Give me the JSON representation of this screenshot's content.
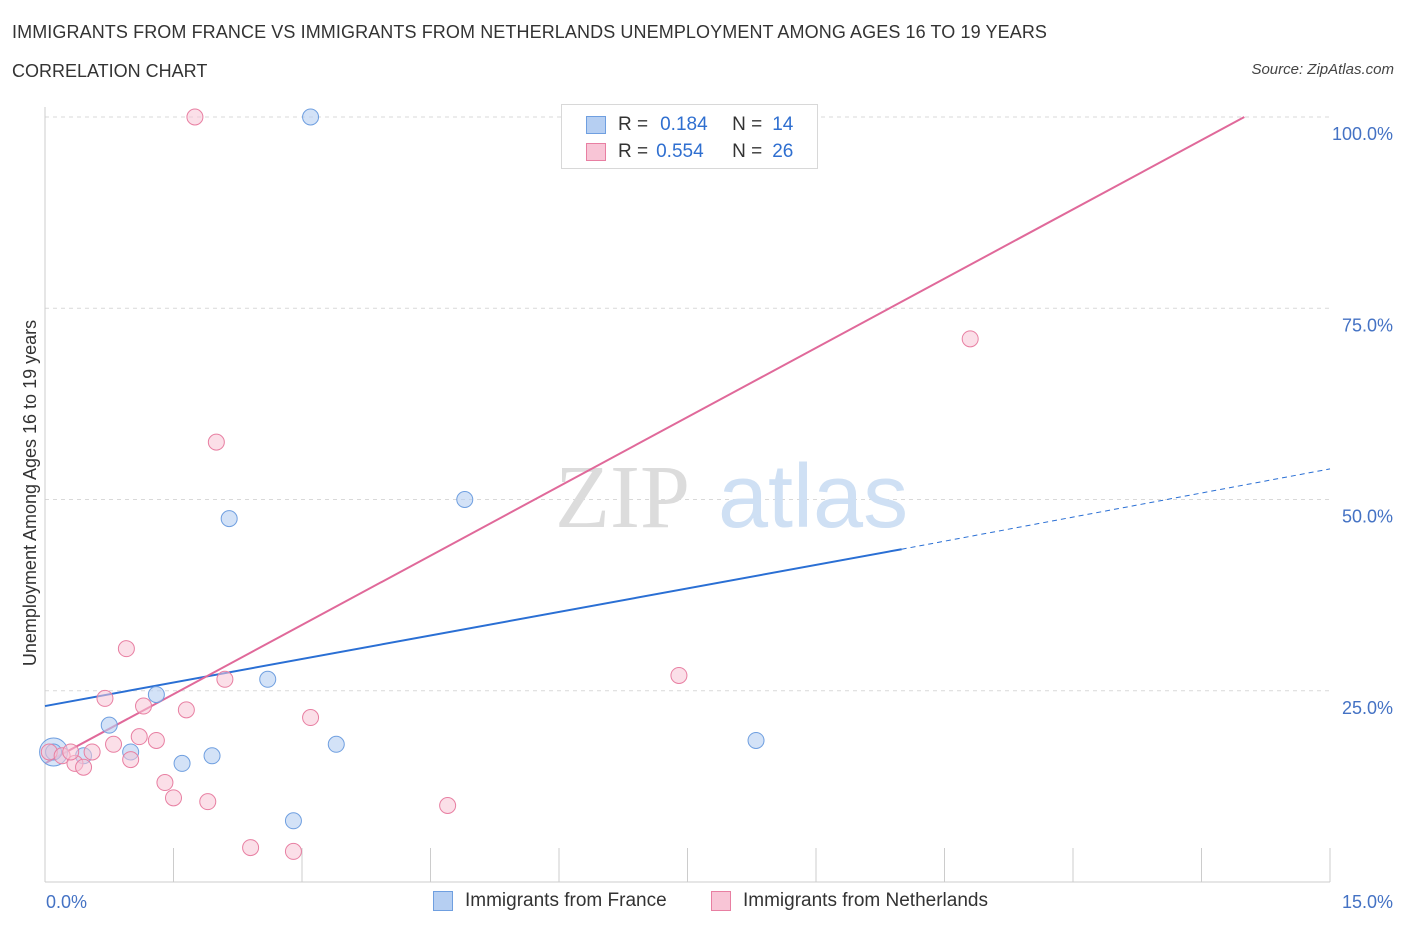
{
  "title": "IMMIGRANTS FROM FRANCE VS IMMIGRANTS FROM NETHERLANDS UNEMPLOYMENT AMONG AGES 16 TO 19 YEARS",
  "subtitle": "CORRELATION CHART",
  "source": "Source: ZipAtlas.com",
  "watermark": {
    "zip": "ZIP",
    "atlas": "atlas"
  },
  "legend": {
    "france": {
      "r_label": "R =",
      "r_value": "0.184",
      "n_label": "N =",
      "n_value": "14"
    },
    "netherlands": {
      "r_label": "R =",
      "r_value": "0.554",
      "n_label": "N =",
      "n_value": "26"
    }
  },
  "colors": {
    "france": "#6f9fe0",
    "france_fill": "#b6cff2",
    "netherlands": "#e87fa2",
    "netherlands_fill": "#f8c5d6",
    "france_line": "#2a6fd4",
    "netherlands_line": "#e0699a"
  },
  "chart_data": {
    "type": "scatter",
    "title": "IMMIGRANTS FROM FRANCE VS IMMIGRANTS FROM NETHERLANDS UNEMPLOYMENT AMONG AGES 16 TO 19 YEARS",
    "xlabel": "",
    "ylabel": "Unemployment Among Ages 16 to 19 years",
    "xlim": [
      0,
      15
    ],
    "ylim": [
      0,
      100
    ],
    "x_tick_labels": [
      "0.0%",
      "15.0%"
    ],
    "y_tick_labels": [
      "100.0%",
      "75.0%",
      "50.0%",
      "25.0%"
    ],
    "y_tick_values": [
      100,
      75,
      50,
      25
    ],
    "series": [
      {
        "name": "Immigrants from France",
        "points": [
          [
            0.1,
            17.0
          ],
          [
            0.75,
            20.5
          ],
          [
            1.0,
            17.0
          ],
          [
            1.3,
            24.5
          ],
          [
            1.6,
            15.5
          ],
          [
            1.95,
            16.5
          ],
          [
            2.15,
            47.5
          ],
          [
            2.6,
            26.5
          ],
          [
            2.9,
            8.0
          ],
          [
            3.1,
            100.0
          ],
          [
            3.4,
            18.0
          ],
          [
            4.9,
            50.0
          ],
          [
            8.3,
            18.5
          ],
          [
            0.45,
            16.5
          ]
        ],
        "trend": {
          "x0": 0,
          "y0": 23.0,
          "x1": 10.0,
          "y1": 43.5,
          "x_dash_end": 15.0,
          "y_dash_end": 54.0
        }
      },
      {
        "name": "Immigrants from Netherlands",
        "points": [
          [
            0.05,
            17.0
          ],
          [
            0.2,
            16.5
          ],
          [
            0.35,
            15.5
          ],
          [
            0.45,
            15.0
          ],
          [
            0.55,
            17.0
          ],
          [
            0.7,
            24.0
          ],
          [
            0.8,
            18.0
          ],
          [
            0.95,
            30.5
          ],
          [
            1.1,
            19.0
          ],
          [
            1.15,
            23.0
          ],
          [
            1.3,
            18.5
          ],
          [
            1.4,
            13.0
          ],
          [
            1.5,
            11.0
          ],
          [
            1.65,
            22.5
          ],
          [
            1.75,
            100.0
          ],
          [
            1.9,
            10.5
          ],
          [
            2.0,
            57.5
          ],
          [
            2.1,
            26.5
          ],
          [
            2.4,
            4.5
          ],
          [
            2.9,
            4.0
          ],
          [
            3.1,
            21.5
          ],
          [
            4.7,
            10.0
          ],
          [
            7.4,
            27.0
          ],
          [
            10.8,
            71.0
          ],
          [
            1.0,
            16.0
          ],
          [
            0.3,
            17.0
          ]
        ],
        "trend": {
          "x0": 0,
          "y0": 15.5,
          "x1": 14.0,
          "y1": 100.0
        }
      }
    ]
  },
  "bottom_legend": {
    "france": "Immigrants from France",
    "netherlands": "Immigrants from Netherlands"
  }
}
